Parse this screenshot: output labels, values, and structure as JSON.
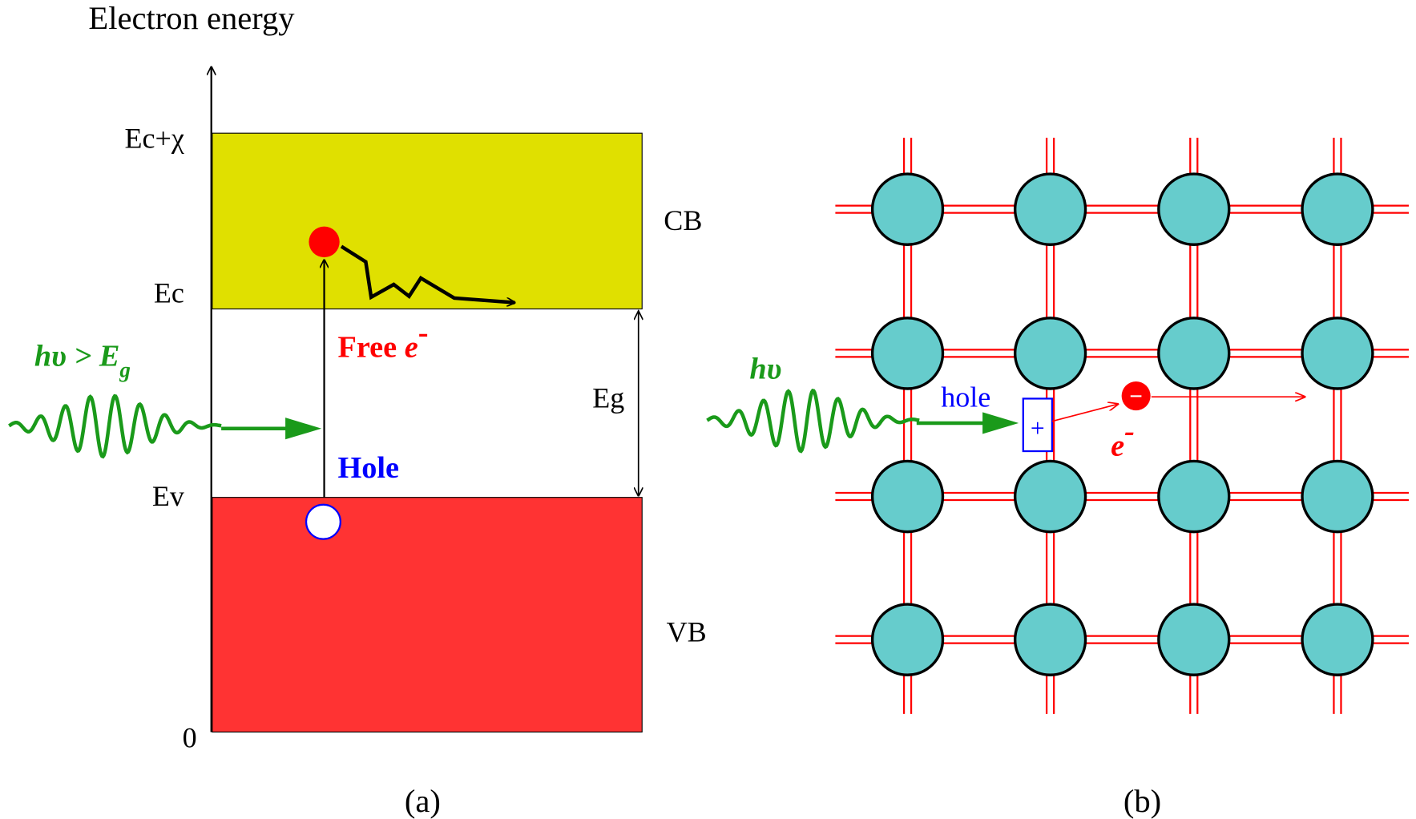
{
  "panel_a": {
    "axis_label": "Electron energy",
    "levels": [
      "Ec+χ",
      "Ec",
      "Ev",
      "0"
    ],
    "conduction_band": "CB",
    "valence_band": "VB",
    "gap": "Eg",
    "free_electron": {
      "text": "Free ",
      "symbol": "e",
      "charge": "-"
    },
    "hole": "Hole",
    "photon": {
      "text": "hυ > E",
      "sub": "g"
    },
    "caption": "(a)"
  },
  "panel_b": {
    "photon": "hυ",
    "hole": "hole",
    "hole_sign": "+",
    "electron_sign": "−",
    "electron": {
      "symbol": "e",
      "charge": "-"
    },
    "caption": "(b)"
  }
}
